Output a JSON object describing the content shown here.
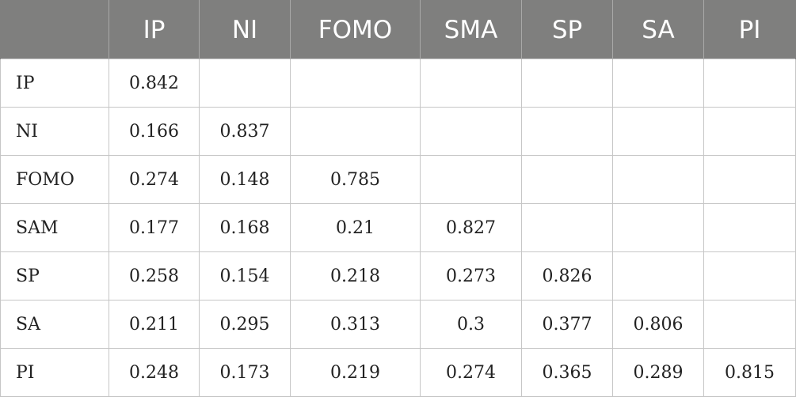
{
  "table": {
    "corner": "",
    "columns": [
      "IP",
      "NI",
      "FOMO",
      "SMA",
      "SP",
      "SA",
      "PI"
    ],
    "rows": [
      {
        "label": "IP",
        "cells": [
          "0.842",
          "",
          "",
          "",
          "",
          "",
          ""
        ]
      },
      {
        "label": "NI",
        "cells": [
          "0.166",
          "0.837",
          "",
          "",
          "",
          "",
          ""
        ]
      },
      {
        "label": "FOMO",
        "cells": [
          "0.274",
          "0.148",
          "0.785",
          "",
          "",
          "",
          ""
        ]
      },
      {
        "label": "SAM",
        "cells": [
          "0.177",
          "0.168",
          "0.21",
          "0.827",
          "",
          "",
          ""
        ]
      },
      {
        "label": "SP",
        "cells": [
          "0.258",
          "0.154",
          "0.218",
          "0.273",
          "0.826",
          "",
          ""
        ]
      },
      {
        "label": "SA",
        "cells": [
          "0.211",
          "0.295",
          "0.313",
          "0.3",
          "0.377",
          "0.806",
          ""
        ]
      },
      {
        "label": "PI",
        "cells": [
          "0.248",
          "0.173",
          "0.219",
          "0.274",
          "0.365",
          "0.289",
          "0.815"
        ]
      }
    ]
  }
}
